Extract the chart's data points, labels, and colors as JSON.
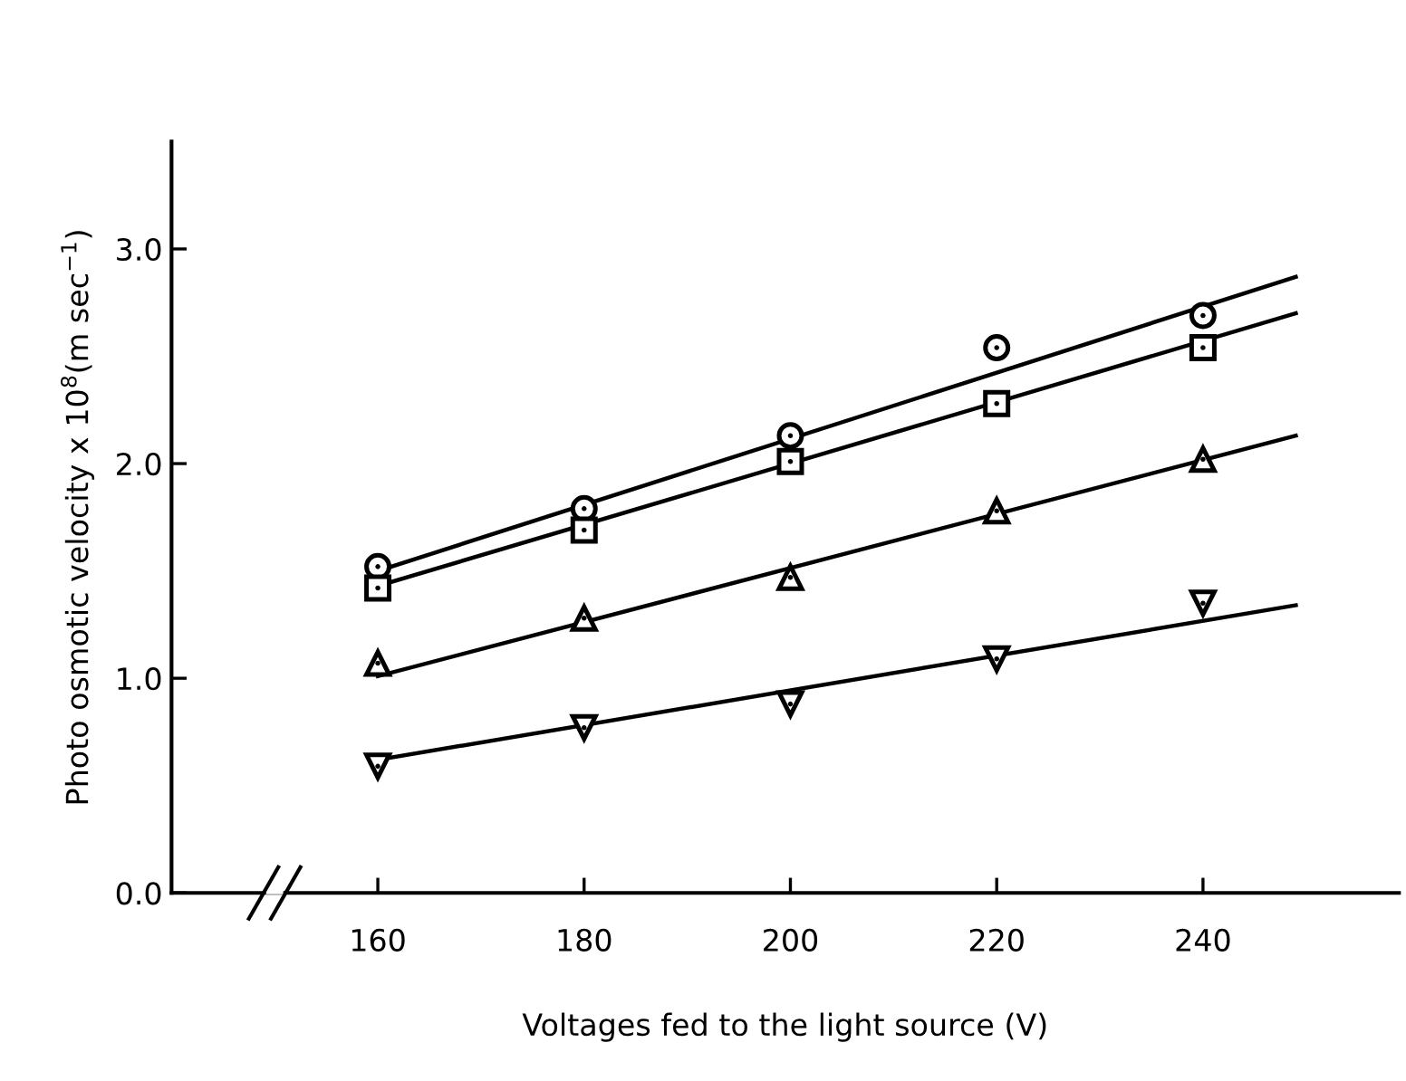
{
  "chart_data": {
    "type": "scatter",
    "xlabel": "Voltages fed to the light source (V)",
    "ylabel": "Photo osmotic velocity x 10$^{8}$(m sec$^{−1}$)",
    "series": [
      {
        "marker": "circle",
        "color": "#000000",
        "x": [
          160,
          180,
          200,
          220,
          240
        ],
        "values": [
          1.52,
          1.79,
          2.13,
          2.54,
          2.69
        ]
      },
      {
        "marker": "square",
        "color": "#000000",
        "x": [
          160,
          180,
          200,
          220,
          240
        ],
        "values": [
          1.42,
          1.69,
          2.01,
          2.28,
          2.54
        ]
      },
      {
        "marker": "triangle",
        "color": "#000000",
        "x": [
          160,
          180,
          200,
          220,
          240
        ],
        "values": [
          1.07,
          1.28,
          1.47,
          1.78,
          2.02
        ]
      },
      {
        "marker": "triangle_down",
        "color": "#000000",
        "x": [
          160,
          180,
          200,
          220,
          240
        ],
        "values": [
          0.59,
          0.77,
          0.88,
          1.09,
          1.35
        ]
      },
      {
        "type": "line",
        "color": "#000000",
        "x": [
          160,
          249
        ],
        "values": [
          1.5,
          2.87
        ]
      },
      {
        "type": "line",
        "color": "#000000",
        "x": [
          160,
          249
        ],
        "values": [
          1.43,
          2.7
        ]
      },
      {
        "type": "line",
        "color": "#000000",
        "x": [
          160,
          249
        ],
        "values": [
          1.01,
          2.13
        ]
      },
      {
        "type": "line",
        "color": "#000000",
        "x": [
          160,
          249
        ],
        "values": [
          0.62,
          1.34
        ]
      }
    ],
    "xlim": [
      140,
      259
    ],
    "ylim": [
      0,
      3.5
    ],
    "xticks": [
      160,
      180,
      200,
      220,
      240
    ],
    "yticks": [
      {
        "value": 0,
        "label": "0.0"
      },
      {
        "value": 1,
        "label": "1.0"
      },
      {
        "value": 2,
        "label": "2.0"
      },
      {
        "value": 3,
        "label": "3.0"
      }
    ],
    "grid": false,
    "legend": false
  }
}
